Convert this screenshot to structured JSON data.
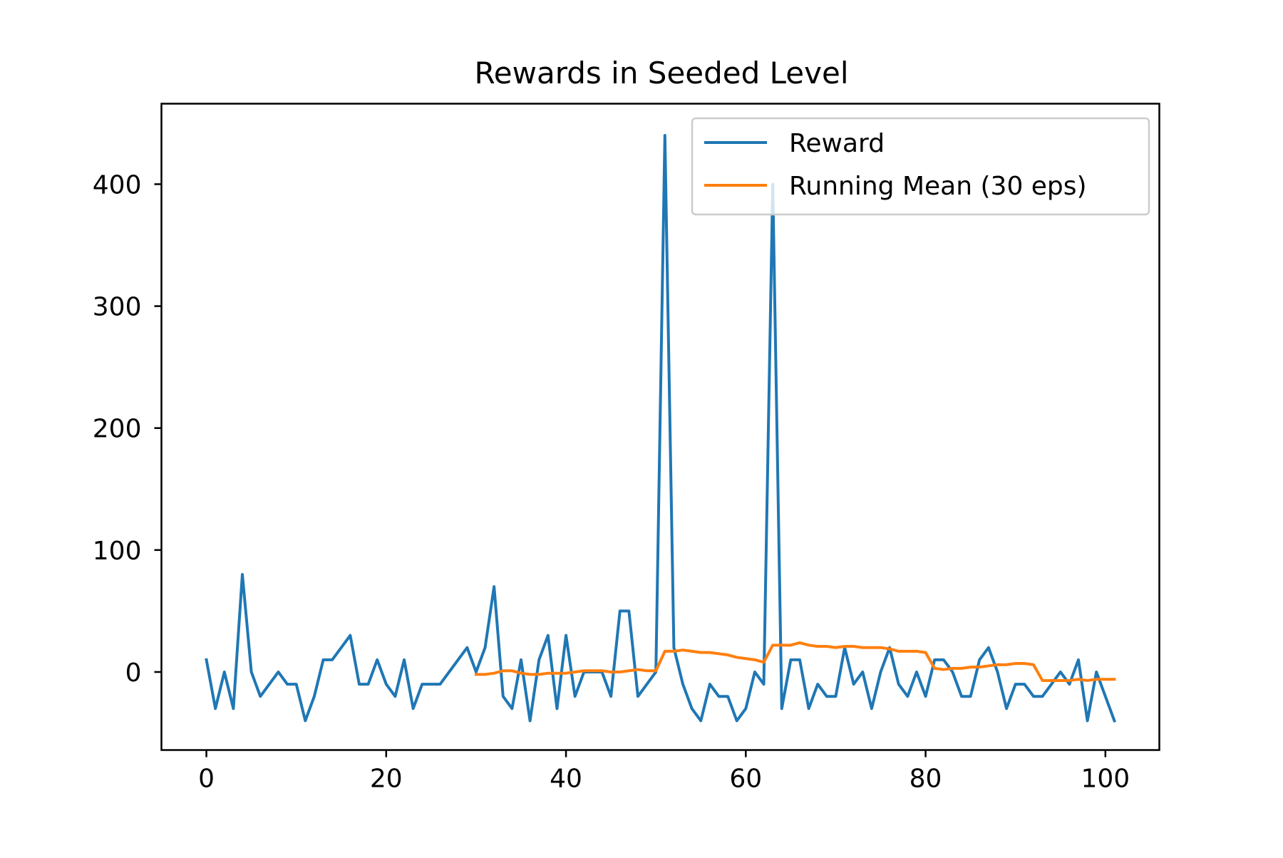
{
  "chart_data": {
    "type": "line",
    "title": "Rewards in Seeded Level",
    "xlabel": "",
    "ylabel": "",
    "xlim": [
      -5,
      106
    ],
    "ylim": [
      -64,
      466
    ],
    "xticks": [
      0,
      20,
      40,
      60,
      80,
      100
    ],
    "yticks": [
      0,
      100,
      200,
      300,
      400
    ],
    "grid": false,
    "legend_position": "top-right",
    "series": [
      {
        "name": "Reward",
        "color": "#1f77b4",
        "x": [
          0,
          1,
          2,
          3,
          4,
          5,
          6,
          7,
          8,
          9,
          10,
          11,
          12,
          13,
          14,
          15,
          16,
          17,
          18,
          19,
          20,
          21,
          22,
          23,
          24,
          25,
          26,
          27,
          28,
          29,
          30,
          31,
          32,
          33,
          34,
          35,
          36,
          37,
          38,
          39,
          40,
          41,
          42,
          43,
          44,
          45,
          46,
          47,
          48,
          49,
          50,
          51,
          52,
          53,
          54,
          55,
          56,
          57,
          58,
          59,
          60,
          61,
          62,
          63,
          64,
          65,
          66,
          67,
          68,
          69,
          70,
          71,
          72,
          73,
          74,
          75,
          76,
          77,
          78,
          79,
          80,
          81,
          82,
          83,
          84,
          85,
          86,
          87,
          88,
          89,
          90,
          91,
          92,
          93,
          94,
          95,
          96,
          97,
          98,
          99,
          100,
          101
        ],
        "y": [
          10,
          -30,
          0,
          -30,
          80,
          0,
          -20,
          -10,
          0,
          -10,
          -10,
          -40,
          -20,
          10,
          10,
          20,
          30,
          -10,
          -10,
          10,
          -10,
          -20,
          10,
          -30,
          -10,
          -10,
          -10,
          0,
          10,
          20,
          0,
          20,
          70,
          -20,
          -30,
          10,
          -40,
          10,
          30,
          -30,
          30,
          -20,
          0,
          0,
          0,
          -20,
          50,
          50,
          -20,
          -10,
          0,
          440,
          20,
          -10,
          -30,
          -40,
          -10,
          -20,
          -20,
          -40,
          -30,
          0,
          -10,
          400,
          -30,
          10,
          10,
          -30,
          -10,
          -20,
          -20,
          20,
          -10,
          0,
          -30,
          0,
          20,
          -10,
          -20,
          0,
          -20,
          10,
          10,
          0,
          -20,
          -20,
          10,
          20,
          0,
          -30,
          -10,
          -10,
          -20,
          -20,
          -10,
          0,
          -10,
          10,
          -40,
          0,
          -20,
          -40
        ]
      },
      {
        "name": "Running Mean (30 eps)",
        "color": "#ff7f0e",
        "x": [
          30,
          31,
          32,
          33,
          34,
          35,
          36,
          37,
          38,
          39,
          40,
          41,
          42,
          43,
          44,
          45,
          46,
          47,
          48,
          49,
          50,
          51,
          52,
          53,
          54,
          55,
          56,
          57,
          58,
          59,
          60,
          61,
          62,
          63,
          64,
          65,
          66,
          67,
          68,
          69,
          70,
          71,
          72,
          73,
          74,
          75,
          76,
          77,
          78,
          79,
          80,
          81,
          82,
          83,
          84,
          85,
          86,
          87,
          88,
          89,
          90,
          91,
          92,
          93,
          94,
          95,
          96,
          97,
          98,
          99,
          100,
          101
        ],
        "y": [
          -2,
          -2,
          -1,
          1,
          1,
          -1,
          -2,
          -2,
          -1,
          -1,
          -1,
          0,
          1,
          1,
          1,
          0,
          0,
          1,
          2,
          1,
          1,
          17,
          17,
          18,
          17,
          16,
          16,
          15,
          14,
          12,
          11,
          10,
          8,
          22,
          22,
          22,
          24,
          22,
          21,
          21,
          20,
          21,
          21,
          20,
          20,
          20,
          19,
          17,
          17,
          17,
          16,
          3,
          2,
          3,
          3,
          4,
          4,
          5,
          6,
          6,
          7,
          7,
          6,
          -7,
          -7,
          -7,
          -7,
          -6,
          -7,
          -6,
          -6,
          -6
        ]
      }
    ]
  }
}
